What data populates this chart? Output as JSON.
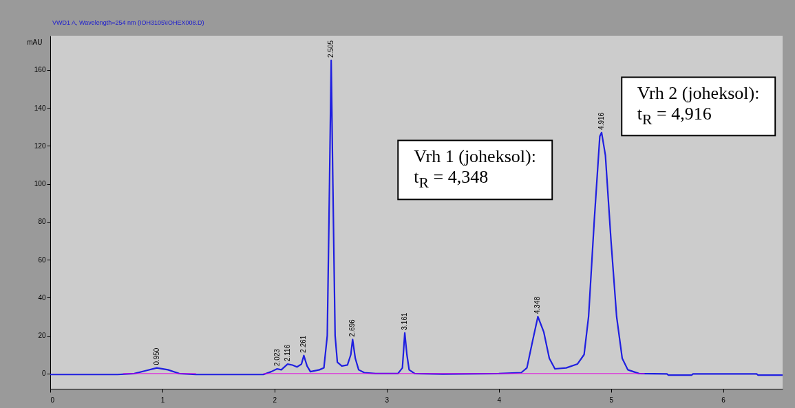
{
  "chart_data": {
    "type": "line",
    "title": "VWD1 A, Wavelength=254 nm (IOH3105\\IOHEX008.D)",
    "ylabel": "mAU",
    "xlim": [
      0,
      6.53
    ],
    "ylim": [
      -8,
      178
    ],
    "xticks": [
      0,
      1,
      2,
      3,
      4,
      5,
      6
    ],
    "yticks": [
      0,
      20,
      40,
      60,
      80,
      100,
      120,
      140,
      160
    ],
    "grid": false,
    "legend": false,
    "marker": "none",
    "line_style": "solid",
    "series": [
      {
        "color": "#1f1fe0",
        "x": [
          0,
          0.6,
          0.75,
          0.85,
          0.95,
          1.05,
          1.15,
          1.3,
          1.9,
          1.97,
          2.023,
          2.06,
          2.116,
          2.16,
          2.2,
          2.24,
          2.261,
          2.29,
          2.32,
          2.4,
          2.44,
          2.47,
          2.49,
          2.505,
          2.52,
          2.54,
          2.56,
          2.6,
          2.65,
          2.68,
          2.696,
          2.72,
          2.75,
          2.8,
          2.9,
          3.1,
          3.14,
          3.161,
          3.18,
          3.2,
          3.25,
          3.5,
          4.0,
          4.2,
          4.25,
          4.3,
          4.348,
          4.4,
          4.45,
          4.5,
          4.6,
          4.7,
          4.76,
          4.8,
          4.85,
          4.9,
          4.916,
          4.95,
          5.0,
          5.05,
          5.1,
          5.15,
          5.25,
          5.5,
          5.51,
          5.72,
          5.73,
          6.3,
          6.31,
          6.53
        ],
        "values": [
          -0.5,
          -0.5,
          0,
          1.5,
          3,
          2,
          0,
          -0.5,
          -0.5,
          1,
          2.5,
          2,
          5,
          4.5,
          3.5,
          5,
          9.5,
          4,
          1,
          2,
          3,
          20,
          100,
          165,
          100,
          20,
          6,
          4,
          4.5,
          10,
          18,
          8,
          2,
          0.5,
          0,
          0,
          3,
          21.5,
          10,
          2,
          0,
          -0.3,
          0,
          0.5,
          3,
          17,
          30,
          22,
          8,
          2.5,
          3,
          5,
          10,
          30,
          80,
          125,
          127,
          115,
          70,
          30,
          8,
          2,
          0,
          -0.2,
          -0.8,
          -0.8,
          -0.2,
          -0.2,
          -0.8,
          -0.8
        ]
      },
      {
        "color": "#e000e0",
        "x": [
          0.65,
          1.3,
          1.35,
          1.9,
          5.3
        ],
        "values": [
          0,
          0,
          null,
          0,
          0
        ]
      }
    ],
    "annotations": [
      {
        "text": "0.950",
        "x": 0.95,
        "y": 3
      },
      {
        "text": "2.023",
        "x": 2.023,
        "y": 2.5
      },
      {
        "text": "2.116",
        "x": 2.116,
        "y": 5
      },
      {
        "text": "2.261",
        "x": 2.261,
        "y": 9.5
      },
      {
        "text": "2.505",
        "x": 2.505,
        "y": 165
      },
      {
        "text": "2.696",
        "x": 2.696,
        "y": 18
      },
      {
        "text": "3.161",
        "x": 3.161,
        "y": 21.5
      },
      {
        "text": "4.348",
        "x": 4.348,
        "y": 30
      },
      {
        "text": "4.916",
        "x": 4.916,
        "y": 127
      },
      "Vrh 1 (joheksol):\nt$_{R}$ = 4,348",
      "Vrh 2 (joheksol):\nt$_{R}$ = 4,916"
    ]
  }
}
